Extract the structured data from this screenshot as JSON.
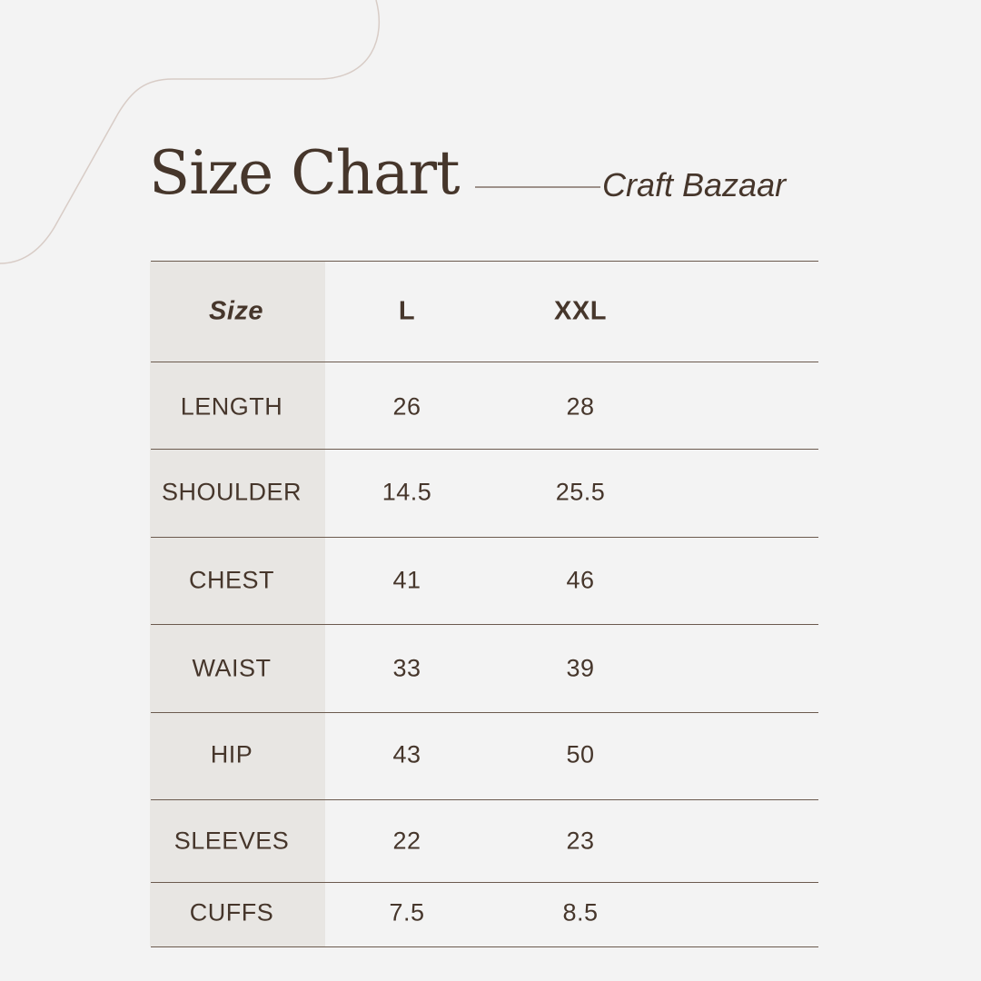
{
  "header": {
    "title": "Size Chart",
    "brand": "Craft Bazaar"
  },
  "table": {
    "columns": [
      "Size",
      "L",
      "XXL"
    ],
    "rows": [
      {
        "label": "LENGTH",
        "l": "26",
        "xxl": "28"
      },
      {
        "label": "SHOULDER",
        "l": "14.5",
        "xxl": "25.5"
      },
      {
        "label": "CHEST",
        "l": "41",
        "xxl": "46"
      },
      {
        "label": "WAIST",
        "l": "33",
        "xxl": "39"
      },
      {
        "label": "HIP",
        "l": "43",
        "xxl": "50"
      },
      {
        "label": "SLEEVES",
        "l": "22",
        "xxl": "23"
      },
      {
        "label": "CUFFS",
        "l": "7.5",
        "xxl": "8.5"
      }
    ]
  },
  "colors": {
    "background": "#f3f3f3",
    "text": "#46362b",
    "shade": "#e8e6e3",
    "deco": "#d8ccc6"
  }
}
